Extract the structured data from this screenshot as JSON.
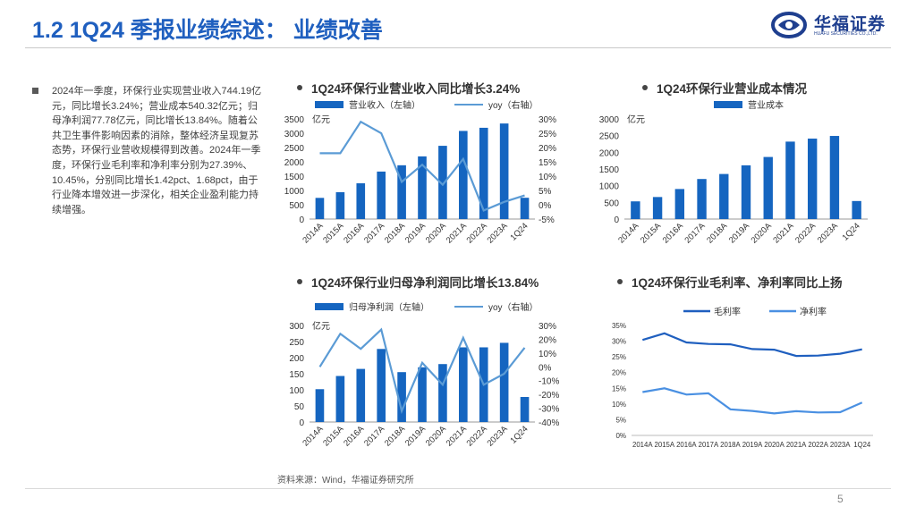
{
  "header": {
    "title": "1.2 1Q24 季报业绩综述： 业绩改善"
  },
  "logo": {
    "name_cn": "华福证券",
    "name_en": "HUAFU SECURITIES CO.,LTD."
  },
  "summary": {
    "text": "2024年一季度，环保行业实现营业收入744.19亿元，同比增长3.24%；营业成本540.32亿元；归母净利润77.78亿元，同比增长13.84%。随着公共卫生事件影响因素的消除，整体经济呈现复苏态势，环保行业营收规模得到改善。2024年一季度，环保行业毛利率和净利率分别为27.39%、10.45%，分别同比增长1.42pct、1.68pct，由于行业降本增效进一步深化，相关企业盈利能力持续增强。"
  },
  "footer": {
    "source": "资料来源：Wind，华福证券研究所",
    "page": "5"
  },
  "colors": {
    "bar": "#1565c0",
    "line": "#5b9bd5",
    "gross": "#1f5fbf",
    "net": "#4a90e2",
    "title": "#1f5fbf"
  },
  "chart_data": [
    {
      "id": "revenue",
      "type": "bar+line",
      "title": "1Q24环保行业营业收入同比增长3.24%",
      "categories": [
        "2014A",
        "2015A",
        "2016A",
        "2017A",
        "2018A",
        "2019A",
        "2020A",
        "2021A",
        "2022A",
        "2023A",
        "1Q24"
      ],
      "unit": "亿元",
      "series": [
        {
          "name": "营业收入（左轴）",
          "kind": "bar",
          "axis": "left",
          "values": [
            740,
            940,
            1250,
            1660,
            1880,
            2190,
            2560,
            3080,
            3190,
            3340,
            744.19
          ]
        },
        {
          "name": "yoy（右轴）",
          "kind": "line",
          "axis": "right",
          "values": [
            18,
            18,
            29,
            25,
            8,
            14,
            7,
            16,
            -2,
            1,
            3.24
          ]
        }
      ],
      "left_axis": {
        "min": 0,
        "max": 3500,
        "ticks": [
          "0",
          "500",
          "1000",
          "1500",
          "2000",
          "2500",
          "3000",
          "3500"
        ]
      },
      "right_axis": {
        "min": -5,
        "max": 30,
        "ticks": [
          "-5%",
          "0%",
          "5%",
          "10%",
          "15%",
          "20%",
          "25%",
          "30%"
        ]
      }
    },
    {
      "id": "cost",
      "type": "bar",
      "title": "1Q24环保行业营业成本情况",
      "categories": [
        "2014A",
        "2015A",
        "2016A",
        "2017A",
        "2018A",
        "2019A",
        "2020A",
        "2021A",
        "2022A",
        "2023A",
        "1Q24"
      ],
      "unit": "亿元",
      "series": [
        {
          "name": "营业成本",
          "kind": "bar",
          "axis": "left",
          "values": [
            530,
            660,
            900,
            1200,
            1350,
            1610,
            1860,
            2320,
            2410,
            2490,
            540.32
          ]
        }
      ],
      "left_axis": {
        "min": 0,
        "max": 3000,
        "ticks": [
          "0",
          "500",
          "1000",
          "1500",
          "2000",
          "2500",
          "3000"
        ]
      }
    },
    {
      "id": "profit",
      "type": "bar+line",
      "title": "1Q24环保行业归母净利润同比增长13.84%",
      "categories": [
        "2014A",
        "2015A",
        "2016A",
        "2017A",
        "2018A",
        "2019A",
        "2020A",
        "2021A",
        "2022A",
        "2023A",
        "1Q24"
      ],
      "unit": "亿元",
      "series": [
        {
          "name": "归母净利润（左轴）",
          "kind": "bar",
          "axis": "left",
          "values": [
            102,
            143,
            165,
            227,
            155,
            170,
            180,
            232,
            232,
            246,
            77.78
          ]
        },
        {
          "name": "yoy（右轴）",
          "kind": "line",
          "axis": "right",
          "values": [
            0,
            24,
            13,
            27,
            -32,
            3,
            -13,
            21,
            -13,
            -5,
            13.84
          ]
        }
      ],
      "left_axis": {
        "min": 0,
        "max": 300,
        "ticks": [
          "0",
          "50",
          "100",
          "150",
          "200",
          "250",
          "300"
        ]
      },
      "right_axis": {
        "min": -40,
        "max": 30,
        "ticks": [
          "-40%",
          "-30%",
          "-20%",
          "-10%",
          "0%",
          "10%",
          "20%",
          "30%"
        ]
      }
    },
    {
      "id": "margin",
      "type": "line",
      "title": "1Q24环保行业毛利率、净利率同比上扬",
      "categories": [
        "2014A",
        "2015A",
        "2016A",
        "2017A",
        "2018A",
        "2019A",
        "2020A",
        "2021A",
        "2022A",
        "2023A",
        "1Q24"
      ],
      "series": [
        {
          "name": "毛利率",
          "kind": "line",
          "values": [
            30.4,
            32.5,
            29.6,
            29.1,
            29.0,
            27.5,
            27.3,
            25.3,
            25.4,
            26.0,
            27.39
          ]
        },
        {
          "name": "净利率",
          "kind": "line",
          "values": [
            13.8,
            15.0,
            13.0,
            13.4,
            8.3,
            7.8,
            7.0,
            7.7,
            7.3,
            7.4,
            10.45
          ]
        }
      ],
      "left_axis": {
        "min": 0,
        "max": 35,
        "ticks": [
          "0%",
          "5%",
          "10%",
          "15%",
          "20%",
          "25%",
          "30%",
          "35%"
        ]
      }
    }
  ]
}
